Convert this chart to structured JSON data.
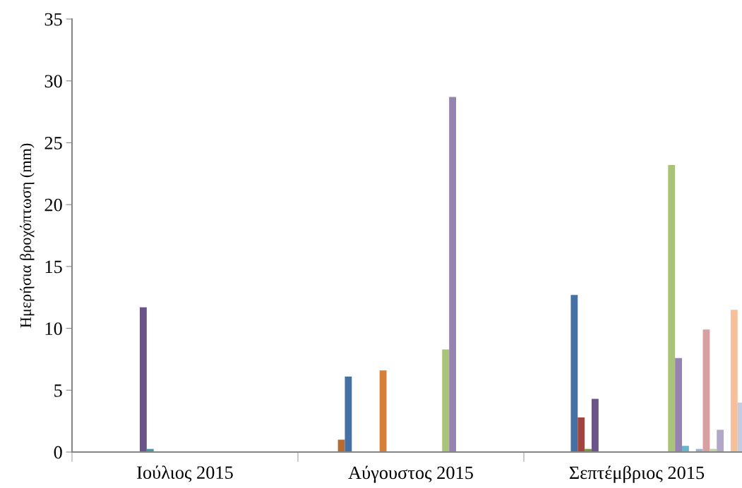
{
  "chart_data": {
    "type": "bar",
    "ylabel": "Ημερήσια βροχόπτωση (mm)",
    "categories": [
      "Ιούλιος 2015",
      "Αύγουστος 2015",
      "Σεπτέμβριος 2015"
    ],
    "ylim": [
      0,
      35
    ],
    "yticks": [
      0,
      5,
      10,
      15,
      20,
      25,
      30,
      35
    ],
    "grid": false,
    "legend": false,
    "series": [
      {
        "values": [
          null,
          null,
          null
        ]
      },
      {
        "values": [
          null,
          null,
          null
        ]
      },
      {
        "values": [
          null,
          null,
          null
        ]
      },
      {
        "values": [
          null,
          null,
          null
        ]
      },
      {
        "values": [
          null,
          null,
          null
        ]
      },
      {
        "color": "#b86b30",
        "values": [
          null,
          1.0,
          null
        ]
      },
      {
        "color": "#4470a5",
        "values": [
          null,
          6.1,
          12.7
        ]
      },
      {
        "color": "#a4443f",
        "values": [
          null,
          null,
          2.8
        ]
      },
      {
        "color": "#76963c",
        "values": [
          null,
          null,
          0.25
        ]
      },
      {
        "color": "#6b5588",
        "values": [
          11.7,
          null,
          4.3
        ]
      },
      {
        "color": "#4397a8",
        "values": [
          0.25,
          null,
          null
        ]
      },
      {
        "color": "#d47f3a",
        "values": [
          null,
          6.6,
          null
        ]
      },
      {
        "values": [
          null,
          null,
          null
        ]
      },
      {
        "values": [
          null,
          null,
          null
        ]
      },
      {
        "values": [
          null,
          null,
          null
        ]
      },
      {
        "values": [
          null,
          null,
          null
        ]
      },
      {
        "values": [
          null,
          null,
          null
        ]
      },
      {
        "values": [
          null,
          null,
          null
        ]
      },
      {
        "values": [
          null,
          null,
          null
        ]
      },
      {
        "values": [
          null,
          null,
          null
        ]
      },
      {
        "color": "#a9c477",
        "values": [
          null,
          8.3,
          23.2
        ]
      },
      {
        "color": "#9584b0",
        "values": [
          null,
          28.7,
          7.6
        ]
      },
      {
        "color": "#6ab4cb",
        "values": [
          null,
          null,
          0.5
        ]
      },
      {
        "values": [
          null,
          null,
          null
        ]
      },
      {
        "color": "#9bb0d3",
        "values": [
          null,
          null,
          0.25
        ]
      },
      {
        "color": "#d7a0a0",
        "values": [
          null,
          null,
          9.9
        ]
      },
      {
        "color": "#bfd4a0",
        "values": [
          null,
          null,
          0.25
        ]
      },
      {
        "color": "#b1a7c6",
        "values": [
          null,
          null,
          1.8
        ]
      },
      {
        "values": [
          null,
          null,
          null
        ]
      },
      {
        "color": "#f8bf9b",
        "values": [
          null,
          null,
          11.5
        ]
      },
      {
        "color": "#c2cde2",
        "values": [
          null,
          null,
          4.0
        ]
      }
    ]
  }
}
